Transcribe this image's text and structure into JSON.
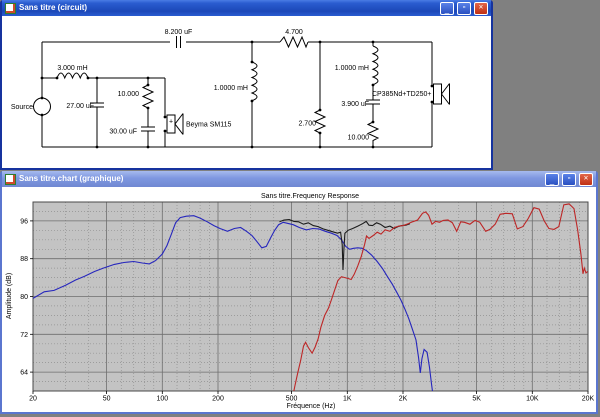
{
  "circuit_window": {
    "title": "Sans titre (circuit)",
    "components": {
      "source": "Source",
      "series_inductor": "3.000 mH",
      "shunt_cap_low": "27.00 uF",
      "rc_resistor": "10.000",
      "rc_cap": "30.00 uF",
      "woofer_polarity": "+",
      "woofer": "Beyma SM115",
      "series_cap_high": "8.200 uF",
      "shunt_inductor": "1.0000 mH",
      "series_resistor": "4.700",
      "shunt_resistor": "2.700",
      "notch_inductor": "1.0000 mH",
      "notch_cap": "3.900 uF",
      "notch_resistor": "10.000",
      "tweeter": "CP385Nd+TD250+"
    }
  },
  "chart_window": {
    "title": "Sans titre.chart (graphique)"
  },
  "chart_data": {
    "type": "line",
    "title": "Sans titre.Frequency Response",
    "xlabel": "Fréquence (Hz)",
    "ylabel": "Amplitude (dB)",
    "x_scale": "log",
    "xlim": [
      20,
      20000
    ],
    "ylim": [
      60,
      100
    ],
    "grid": true,
    "legend": false,
    "plot_bg": "#c3c3c3",
    "x_ticks": [
      [
        20,
        "20"
      ],
      [
        50,
        "50"
      ],
      [
        100,
        "100"
      ],
      [
        200,
        "200"
      ],
      [
        500,
        "500"
      ],
      [
        1000,
        "1K"
      ],
      [
        2000,
        "2K"
      ],
      [
        5000,
        "5K"
      ],
      [
        10000,
        "10K"
      ],
      [
        20000,
        "20K"
      ]
    ],
    "x_minor": [
      30,
      40,
      60,
      70,
      80,
      90,
      120,
      140,
      160,
      180,
      300,
      400,
      600,
      700,
      800,
      900,
      1200,
      1400,
      1600,
      1800,
      3000,
      4000,
      6000,
      7000,
      8000,
      9000,
      12000,
      14000,
      16000,
      18000
    ],
    "y_ticks": [
      96,
      88,
      80,
      72,
      64
    ],
    "y_minor": [
      62,
      66,
      68,
      70,
      74,
      76,
      78,
      82,
      84,
      86,
      90,
      92,
      94,
      98
    ],
    "series": [
      {
        "name": "woofer-lowpass",
        "color": "#2626bd",
        "points": [
          [
            20,
            79.6
          ],
          [
            23,
            81
          ],
          [
            26,
            81.3
          ],
          [
            30,
            82.4
          ],
          [
            34,
            83.5
          ],
          [
            38,
            84.3
          ],
          [
            43,
            85.3
          ],
          [
            48,
            86
          ],
          [
            55,
            86.8
          ],
          [
            62,
            87.2
          ],
          [
            70,
            87.4
          ],
          [
            78,
            87.1
          ],
          [
            85,
            86.9
          ],
          [
            92,
            87.6
          ],
          [
            100,
            89
          ],
          [
            106,
            90.8
          ],
          [
            112,
            93.2
          ],
          [
            118,
            95.6
          ],
          [
            125,
            96.7
          ],
          [
            135,
            97
          ],
          [
            148,
            97.1
          ],
          [
            160,
            96.6
          ],
          [
            175,
            95.8
          ],
          [
            190,
            95
          ],
          [
            205,
            94.4
          ],
          [
            225,
            93.8
          ],
          [
            245,
            94.4
          ],
          [
            265,
            94.6
          ],
          [
            285,
            93.8
          ],
          [
            305,
            92.9
          ],
          [
            325,
            91.6
          ],
          [
            345,
            90.3
          ],
          [
            365,
            90.6
          ],
          [
            385,
            92.4
          ],
          [
            405,
            94
          ],
          [
            425,
            95.2
          ],
          [
            450,
            95.7
          ],
          [
            475,
            95.5
          ],
          [
            510,
            95.2
          ],
          [
            550,
            94.6
          ],
          [
            600,
            94.1
          ],
          [
            650,
            94.4
          ],
          [
            700,
            94.3
          ],
          [
            760,
            93.8
          ],
          [
            820,
            93.4
          ],
          [
            880,
            92.9
          ],
          [
            930,
            92
          ],
          [
            980,
            90.6
          ],
          [
            1030,
            90
          ],
          [
            1080,
            90.2
          ],
          [
            1140,
            90.3
          ],
          [
            1200,
            90.2
          ],
          [
            1270,
            89.7
          ],
          [
            1350,
            88.8
          ],
          [
            1450,
            87.4
          ],
          [
            1550,
            85.9
          ],
          [
            1650,
            84.2
          ],
          [
            1750,
            82.6
          ],
          [
            1850,
            80.9
          ],
          [
            1950,
            79.2
          ],
          [
            2050,
            77.3
          ],
          [
            2150,
            75.3
          ],
          [
            2250,
            73
          ],
          [
            2350,
            70.8
          ],
          [
            2430,
            67
          ],
          [
            2480,
            63.8
          ],
          [
            2530,
            66.8
          ],
          [
            2600,
            68.8
          ],
          [
            2700,
            68.2
          ],
          [
            2780,
            65
          ],
          [
            2850,
            61.5
          ],
          [
            2920,
            58.5
          ]
        ]
      },
      {
        "name": "summed-response",
        "color": "#1c1c1c",
        "points": [
          [
            430,
            95.8
          ],
          [
            455,
            96.2
          ],
          [
            485,
            96.3
          ],
          [
            515,
            95.9
          ],
          [
            545,
            95.8
          ],
          [
            580,
            95.3
          ],
          [
            615,
            95.6
          ],
          [
            655,
            95
          ],
          [
            695,
            94.8
          ],
          [
            740,
            94.3
          ],
          [
            785,
            94
          ],
          [
            835,
            93.7
          ],
          [
            885,
            93.4
          ],
          [
            920,
            93.6
          ],
          [
            938,
            91
          ],
          [
            948,
            85.6
          ],
          [
            958,
            90
          ],
          [
            970,
            93.4
          ],
          [
            1010,
            94
          ],
          [
            1070,
            94.4
          ],
          [
            1140,
            94.9
          ],
          [
            1210,
            95.4
          ],
          [
            1265,
            95.9
          ],
          [
            1310,
            95.1
          ],
          [
            1370,
            95
          ],
          [
            1440,
            95.6
          ],
          [
            1510,
            95.3
          ],
          [
            1600,
            94.6
          ],
          [
            1700,
            94.9
          ],
          [
            1790,
            94.4
          ],
          [
            1880,
            94.8
          ],
          [
            1970,
            95
          ],
          [
            2070,
            95.1
          ],
          [
            2180,
            95.4
          ]
        ]
      },
      {
        "name": "tweeter-highpass",
        "color": "#bd2626",
        "points": [
          [
            500,
            57.5
          ],
          [
            520,
            61
          ],
          [
            540,
            63.9
          ],
          [
            560,
            66.5
          ],
          [
            580,
            69.5
          ],
          [
            595,
            70.3
          ],
          [
            615,
            69.2
          ],
          [
            645,
            68
          ],
          [
            670,
            69.3
          ],
          [
            695,
            71
          ],
          [
            720,
            73.5
          ],
          [
            755,
            76
          ],
          [
            790,
            77.5
          ],
          [
            820,
            79.3
          ],
          [
            855,
            81.4
          ],
          [
            890,
            83.4
          ],
          [
            930,
            84.2
          ],
          [
            970,
            84
          ],
          [
            1010,
            83.8
          ],
          [
            1050,
            83.6
          ],
          [
            1090,
            84.7
          ],
          [
            1140,
            86.5
          ],
          [
            1190,
            88.5
          ],
          [
            1240,
            91
          ],
          [
            1270,
            92.8
          ],
          [
            1310,
            92.3
          ],
          [
            1380,
            92.9
          ],
          [
            1450,
            93.6
          ],
          [
            1520,
            93.2
          ],
          [
            1600,
            94.1
          ],
          [
            1700,
            93.8
          ],
          [
            1800,
            94.6
          ],
          [
            1900,
            94.9
          ],
          [
            2000,
            95
          ],
          [
            2100,
            95.3
          ],
          [
            2250,
            95.8
          ],
          [
            2400,
            96.2
          ],
          [
            2550,
            97.6
          ],
          [
            2650,
            97.9
          ],
          [
            2750,
            97.2
          ],
          [
            2870,
            95.3
          ],
          [
            3000,
            95.9
          ],
          [
            3150,
            95.7
          ],
          [
            3300,
            96.1
          ],
          [
            3500,
            96.2
          ],
          [
            3700,
            95.6
          ],
          [
            3900,
            93.8
          ],
          [
            4100,
            95.8
          ],
          [
            4300,
            95.7
          ],
          [
            4600,
            95.3
          ],
          [
            4900,
            96.1
          ],
          [
            5200,
            95.7
          ],
          [
            5600,
            93.8
          ],
          [
            5900,
            94.2
          ],
          [
            6300,
            95.3
          ],
          [
            6700,
            97.4
          ],
          [
            7200,
            97.6
          ],
          [
            7800,
            97.5
          ],
          [
            8300,
            94.3
          ],
          [
            8900,
            94.8
          ],
          [
            9500,
            96.5
          ],
          [
            10200,
            98.8
          ],
          [
            10900,
            98.5
          ],
          [
            11600,
            96
          ],
          [
            12300,
            94.4
          ],
          [
            13100,
            94.2
          ],
          [
            13900,
            94.8
          ],
          [
            14800,
            99.4
          ],
          [
            15800,
            99.6
          ],
          [
            16800,
            98.6
          ],
          [
            17600,
            94
          ],
          [
            18300,
            89
          ],
          [
            18800,
            84.8
          ],
          [
            19100,
            86
          ],
          [
            19500,
            85
          ],
          [
            19900,
            85.3
          ]
        ]
      }
    ]
  }
}
